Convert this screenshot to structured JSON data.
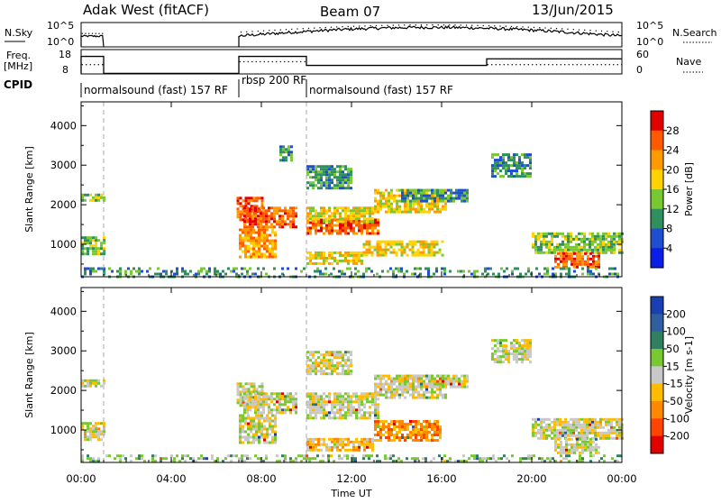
{
  "header": {
    "radar": "Adak West (fitACF)",
    "beam": "Beam 07",
    "date": "13/Jun/2015"
  },
  "strip1": {
    "left_label": "N.Sky",
    "right_label": "N.Search",
    "ticks": [
      "10^5",
      "10^0"
    ]
  },
  "strip2": {
    "left_label_top": "Freq.",
    "left_label_bottom": "[MHz]",
    "left_ticks": [
      "18",
      "8"
    ],
    "right_label": "Nave",
    "right_ticks": [
      "60",
      "0"
    ]
  },
  "cpid": {
    "label": "CPID",
    "segments": [
      {
        "text": "normalsound (fast) 157 RF",
        "start_h": 0,
        "end_h": 7
      },
      {
        "text": "rbsp 200 RF",
        "start_h": 7,
        "end_h": 10
      },
      {
        "text": "normalsound (fast) 157 RF",
        "start_h": 10,
        "end_h": 24
      }
    ]
  },
  "chart_data": [
    {
      "type": "heatmap",
      "quantity": "power",
      "ylabel": "Slant Range [km]",
      "y_ticks": [
        "1000",
        "2000",
        "3000",
        "4000"
      ],
      "ylim": [
        180,
        4600
      ],
      "colorbar_label": "Power [dB]",
      "colorbar_ticks": [
        "28",
        "24",
        "20",
        "16",
        "12",
        "8",
        "4"
      ],
      "colorbar_colors": [
        "#e00000",
        "#ff5a00",
        "#ff9a00",
        "#ffd200",
        "#78c832",
        "#2f8f5f",
        "#1f4fd0",
        "#0a1ee8"
      ],
      "regions": [
        {
          "t0": 0.0,
          "t1": 1.0,
          "r0": 2080,
          "r1": 2280,
          "level": 3
        },
        {
          "t0": 0.0,
          "t1": 1.0,
          "r0": 750,
          "r1": 1200,
          "level": 3
        },
        {
          "t0": 6.9,
          "t1": 8.0,
          "r0": 1650,
          "r1": 2200,
          "level": 6
        },
        {
          "t0": 7.2,
          "t1": 9.5,
          "r0": 1450,
          "r1": 1950,
          "level": 6
        },
        {
          "t0": 7.0,
          "t1": 8.6,
          "r0": 700,
          "r1": 1400,
          "level": 5
        },
        {
          "t0": 8.8,
          "t1": 9.4,
          "r0": 3100,
          "r1": 3500,
          "level": 2
        },
        {
          "t0": 10.0,
          "t1": 13.2,
          "r0": 1300,
          "r1": 1650,
          "level": 6
        },
        {
          "t0": 10.0,
          "t1": 13.0,
          "r0": 1600,
          "r1": 1950,
          "level": 4
        },
        {
          "t0": 13.0,
          "t1": 16.2,
          "r0": 1800,
          "r1": 2400,
          "level": 4
        },
        {
          "t0": 10.0,
          "t1": 12.5,
          "r0": 520,
          "r1": 820,
          "level": 4
        },
        {
          "t0": 12.5,
          "t1": 16.0,
          "r0": 750,
          "r1": 1100,
          "level": 4
        },
        {
          "t0": 10.0,
          "t1": 12.0,
          "r0": 2400,
          "r1": 3000,
          "level": 2
        },
        {
          "t0": 14.2,
          "t1": 17.2,
          "r0": 2100,
          "r1": 2400,
          "level": 2
        },
        {
          "t0": 18.2,
          "t1": 20.0,
          "r0": 2700,
          "r1": 3300,
          "level": 2
        },
        {
          "t0": 20.0,
          "t1": 24.0,
          "r0": 800,
          "r1": 1300,
          "level": 3
        },
        {
          "t0": 21.0,
          "t1": 23.0,
          "r0": 400,
          "r1": 800,
          "level": 6
        },
        {
          "t0": 0.0,
          "t1": 24.0,
          "r0": 180,
          "r1": 420,
          "level": 2
        }
      ]
    },
    {
      "type": "heatmap",
      "quantity": "velocity",
      "ylabel": "Slant Range [km]",
      "y_ticks": [
        "1000",
        "2000",
        "3000",
        "4000"
      ],
      "ylim": [
        180,
        4600
      ],
      "colorbar_label": "Velocity [m s-1]",
      "colorbar_ticks": [
        "200",
        "100",
        "50",
        "15",
        "-15",
        "-50",
        "-100",
        "-200"
      ],
      "colorbar_colors": [
        "#1a3fb0",
        "#2f5fa0",
        "#2f7f60",
        "#78c832",
        "#c8c8c8",
        "#ffbb00",
        "#ff8800",
        "#ff4400",
        "#e00000"
      ],
      "regions": [
        {
          "t0": 0.0,
          "t1": 1.0,
          "r0": 2080,
          "r1": 2280,
          "level": 4
        },
        {
          "t0": 0.0,
          "t1": 1.0,
          "r0": 750,
          "r1": 1200,
          "level": 4
        },
        {
          "t0": 6.9,
          "t1": 8.0,
          "r0": 1650,
          "r1": 2200,
          "level": 4
        },
        {
          "t0": 7.2,
          "t1": 9.5,
          "r0": 1450,
          "r1": 1950,
          "level": 4
        },
        {
          "t0": 7.0,
          "t1": 8.6,
          "r0": 700,
          "r1": 1400,
          "level": 4
        },
        {
          "t0": 10.0,
          "t1": 13.2,
          "r0": 1300,
          "r1": 1950,
          "level": 4
        },
        {
          "t0": 13.0,
          "t1": 16.2,
          "r0": 1800,
          "r1": 2400,
          "level": 4
        },
        {
          "t0": 10.0,
          "t1": 13.0,
          "r0": 520,
          "r1": 800,
          "level": 5
        },
        {
          "t0": 13.0,
          "t1": 16.0,
          "r0": 750,
          "r1": 1250,
          "level": 6
        },
        {
          "t0": 10.0,
          "t1": 12.0,
          "r0": 2400,
          "r1": 3000,
          "level": 4
        },
        {
          "t0": 14.2,
          "t1": 17.2,
          "r0": 2100,
          "r1": 2400,
          "level": 4
        },
        {
          "t0": 18.2,
          "t1": 20.0,
          "r0": 2700,
          "r1": 3300,
          "level": 4
        },
        {
          "t0": 20.0,
          "t1": 24.0,
          "r0": 800,
          "r1": 1300,
          "level": 4
        },
        {
          "t0": 21.0,
          "t1": 23.0,
          "r0": 400,
          "r1": 800,
          "level": 4
        },
        {
          "t0": 0.0,
          "t1": 24.0,
          "r0": 180,
          "r1": 380,
          "level": 3
        }
      ]
    }
  ],
  "x_axis": {
    "label": "Time UT",
    "ticks": [
      "00:00",
      "04:00",
      "08:00",
      "12:00",
      "16:00",
      "20:00",
      "00:00"
    ],
    "range_h": [
      0,
      24
    ]
  }
}
